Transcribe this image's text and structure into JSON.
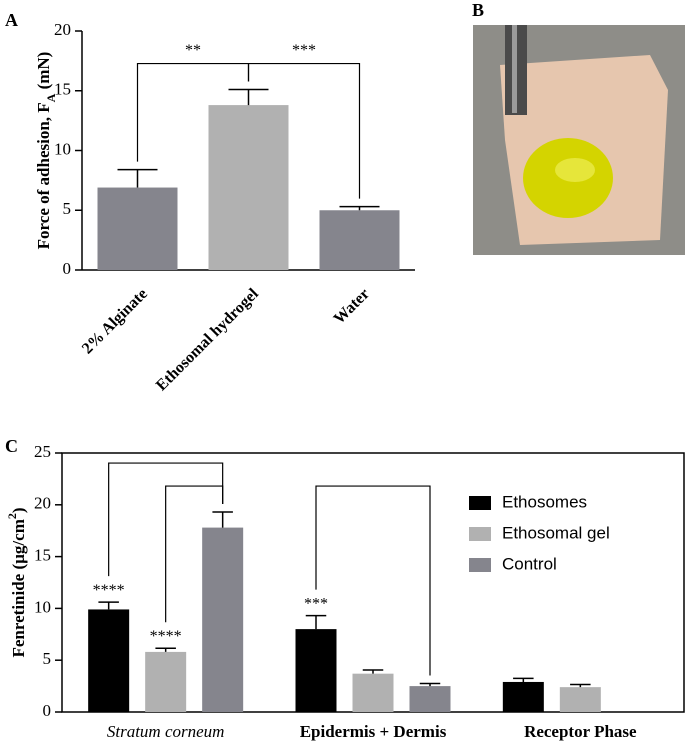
{
  "chart_data": [
    {
      "type": "bar",
      "panel_label": "A",
      "ylabel": [
        {
          "text": "Force of adhesion, F"
        },
        {
          "text": "A",
          "script": "sub"
        },
        {
          "text": " (mN)"
        }
      ],
      "categories": [
        "2% Alginate",
        "Ethosomal hydrogel",
        "Water"
      ],
      "values": [
        6.9,
        13.8,
        5.0
      ],
      "errors": [
        1.5,
        1.3,
        0.3
      ],
      "colors": [
        "#85858d",
        "#b1b1b1",
        "#85858d"
      ],
      "ylim": [
        0,
        20
      ],
      "yticks": [
        0,
        5,
        10,
        15,
        20
      ],
      "brackets": [
        {
          "text": "**",
          "from": "2% Alginate",
          "to": "Ethosomal hydrogel"
        },
        {
          "text": "***",
          "from": "Ethosomal hydrogel",
          "to": "Water"
        }
      ]
    },
    {
      "type": "grouped_bar",
      "panel_label": "C",
      "ylabel": [
        {
          "text": "Fenretinide (µg/cm"
        },
        {
          "text": "2",
          "script": "super"
        },
        {
          "text": ")"
        }
      ],
      "categories": [
        "Stratum corneum",
        "Epidermis + Dermis",
        "Receptor Phase"
      ],
      "category_styles": [
        "italic",
        "bold",
        "bold"
      ],
      "series": [
        {
          "name": "Ethosomes",
          "color": "#000000",
          "values": [
            9.9,
            8.0,
            2.9
          ],
          "errors": [
            0.7,
            1.3,
            0.35
          ]
        },
        {
          "name": "Ethosomal gel",
          "color": "#b1b1b1",
          "values": [
            5.8,
            3.7,
            2.4
          ],
          "errors": [
            0.35,
            0.35,
            0.25
          ]
        },
        {
          "name": "Control",
          "color": "#85858d",
          "values": [
            17.8,
            2.5,
            null
          ],
          "errors": [
            1.5,
            0.25,
            null
          ]
        }
      ],
      "ylim": [
        0,
        25
      ],
      "yticks": [
        0,
        5,
        10,
        15,
        20,
        25
      ],
      "frame": true,
      "legend": "top-right",
      "annotations": [
        {
          "text": "****",
          "series": "Ethosomes",
          "category": "Stratum corneum"
        },
        {
          "text": "****",
          "series": "Ethosomal gel",
          "category": "Stratum corneum"
        },
        {
          "text": "***",
          "series": "Ethosomes",
          "category": "Epidermis + Dermis"
        }
      ],
      "brackets": [
        {
          "from": [
            "Ethosomes",
            "Stratum corneum"
          ],
          "to": [
            "Control",
            "Stratum corneum"
          ]
        },
        {
          "from": [
            "Ethosomal gel",
            "Stratum corneum"
          ],
          "to": [
            "Control",
            "Stratum corneum"
          ]
        },
        {
          "from": [
            "Ethosomes",
            "Epidermis + Dermis"
          ],
          "to": [
            "Control",
            "Epidermis + Dermis"
          ]
        }
      ]
    }
  ],
  "photo": {
    "panel_label": "B"
  }
}
